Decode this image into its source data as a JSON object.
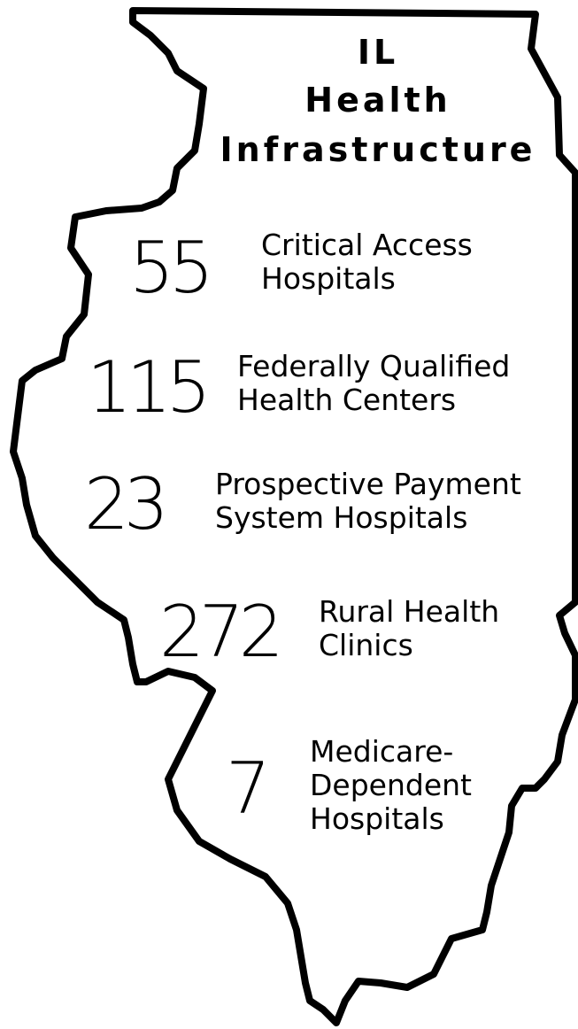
{
  "title": [
    "IL",
    "Health",
    "Infrastructure"
  ],
  "items": [
    {
      "number": 55,
      "label": [
        "Critical Access",
        "Hospitals"
      ]
    },
    {
      "number": 115,
      "label": [
        "Federally Qualified",
        "Health Centers"
      ]
    },
    {
      "number": 23,
      "label": [
        "Prospective Payment",
        "System Hospitals"
      ]
    },
    {
      "number": 272,
      "label": [
        "Rural Health",
        "Clinics"
      ]
    },
    {
      "number": 7,
      "label": [
        "Medicare-",
        "Dependent",
        "Hospitals"
      ]
    }
  ]
}
